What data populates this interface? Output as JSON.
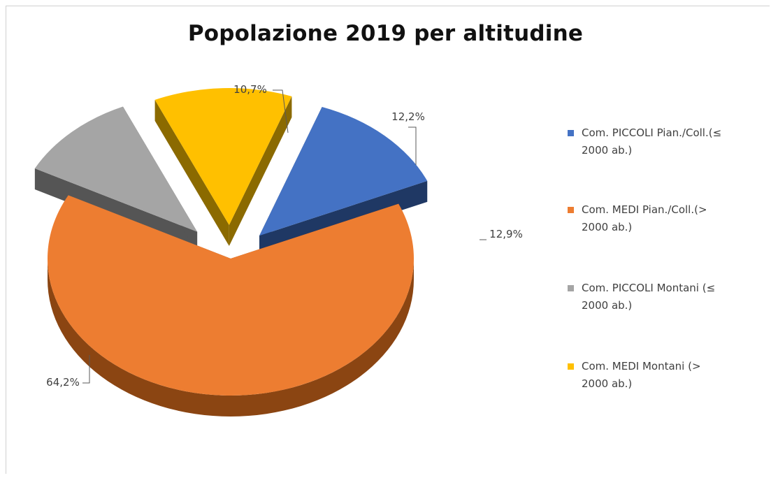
{
  "chart_data": {
    "type": "pie",
    "title": "Popolazione 2019 per altitudine",
    "style": "3d-exploded",
    "legend_position": "right",
    "slices": [
      {
        "label": "Com. PICCOLI Pian./Coll.(≤ 2000 ab.)",
        "value": 12.9,
        "display": "12,9%",
        "color": "#4472C4",
        "side_color": "#1F3864"
      },
      {
        "label": "Com. MEDI Pian./Coll.(> 2000 ab.)",
        "value": 64.2,
        "display": "64,2%",
        "color": "#ED7D31",
        "side_color": "#8B4512"
      },
      {
        "label": "Com. PICCOLI Montani (≤ 2000 ab.)",
        "value": 10.7,
        "display": "10,7%",
        "color": "#A5A5A5",
        "side_color": "#555555"
      },
      {
        "label": "Com. MEDI Montani (> 2000 ab.)",
        "value": 12.2,
        "display": "12,2%",
        "color": "#FFC000",
        "side_color": "#8B6A00"
      }
    ],
    "legend_lines": [
      [
        "Com. PICCOLI Pian./Coll.(≤",
        "2000 ab.)"
      ],
      [
        "Com. MEDI Pian./Coll.(>",
        "2000 ab.)"
      ],
      [
        "Com. PICCOLI Montani (≤",
        "2000 ab.)"
      ],
      [
        "Com. MEDI Montani (>",
        "2000 ab.)"
      ]
    ]
  }
}
